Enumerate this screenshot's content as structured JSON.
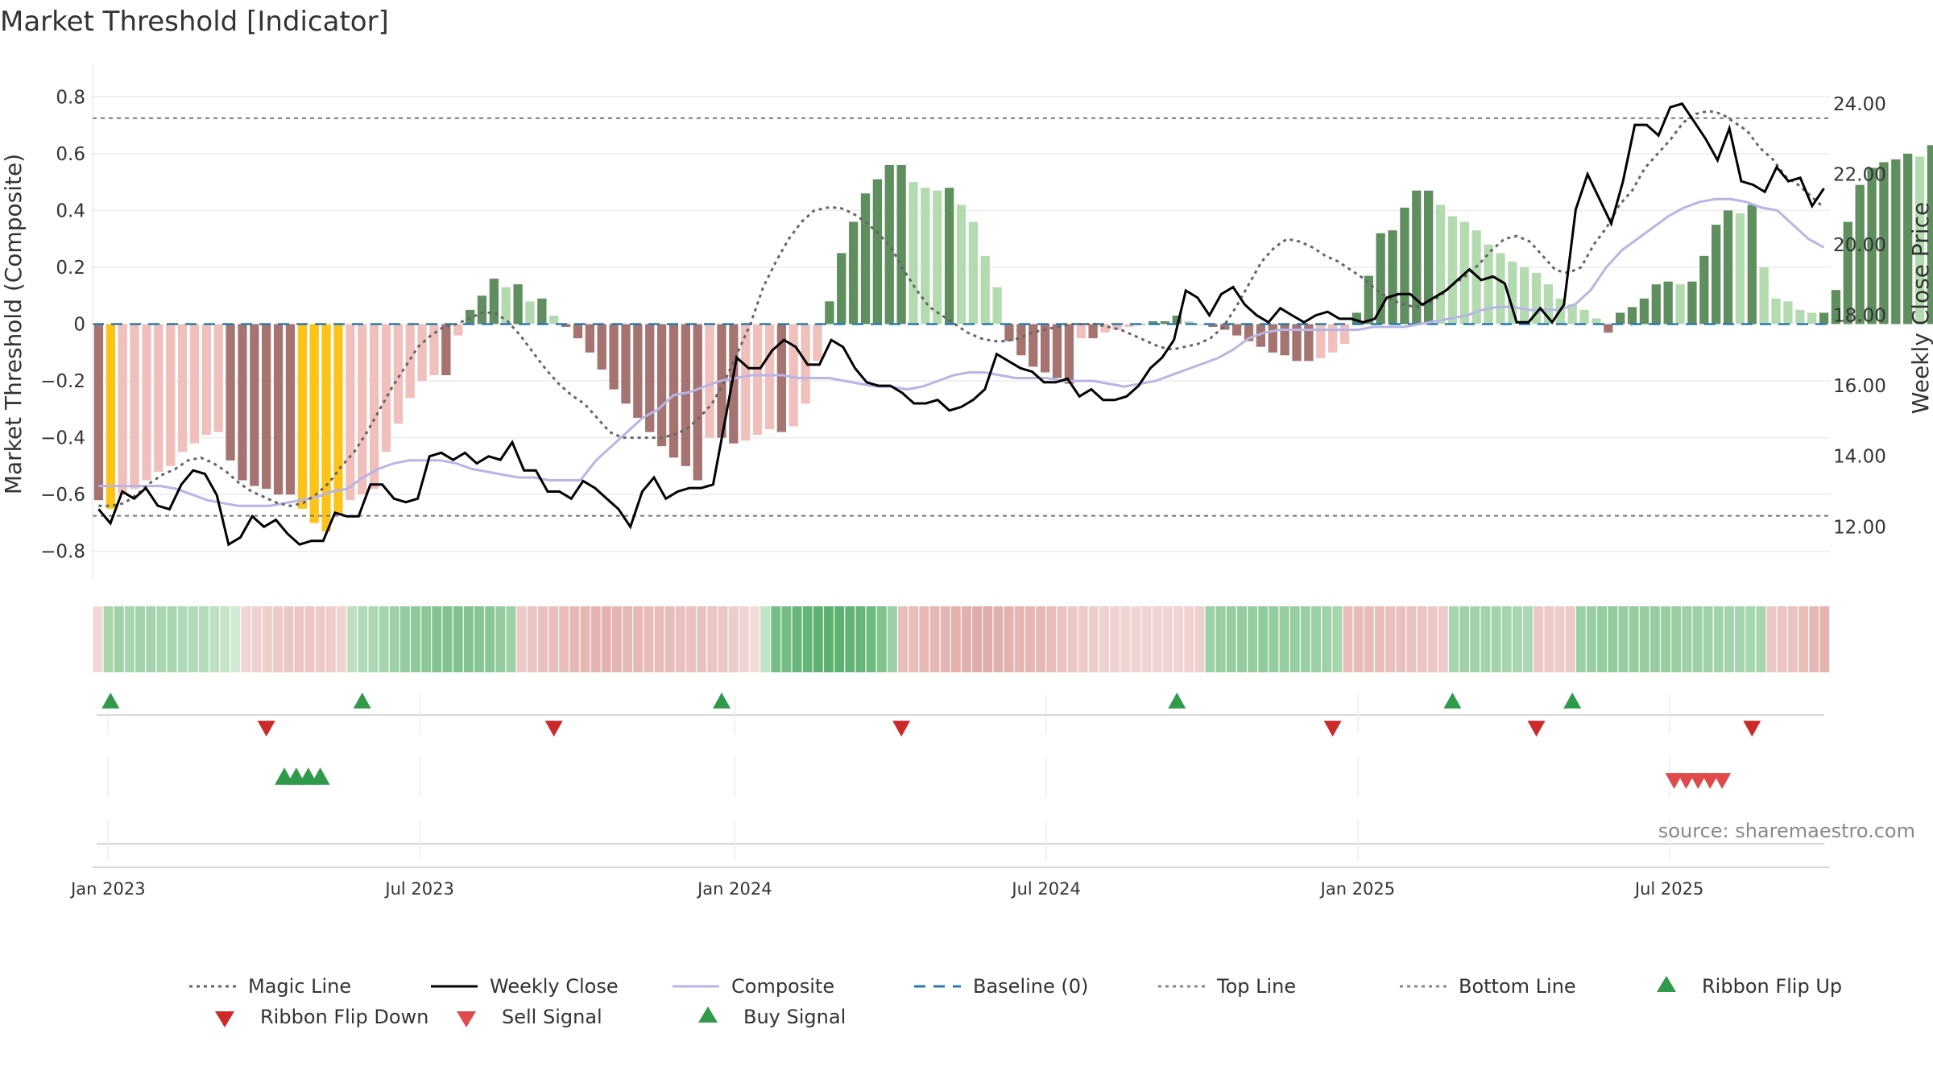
{
  "chart_data": {
    "type": "bar",
    "title": "Market Threshold [Indicator]",
    "ylabel_left": "Market Threshold (Composite)",
    "ylabel_right": "Weekly Close Price",
    "ylim_left": [
      -0.9,
      0.9
    ],
    "ylim_right": [
      10.5,
      25.0
    ],
    "yticks_left": [
      0.8,
      0.6,
      0.4,
      0.2,
      0,
      -0.2,
      -0.4,
      -0.6,
      -0.8
    ],
    "yticks_left_labels": [
      "0.8",
      "0.6",
      "0.4",
      "0.2",
      "0",
      "−0.2",
      "−0.4",
      "−0.6",
      "−0.8"
    ],
    "yticks_right": [
      24,
      22,
      20,
      18,
      16,
      14,
      12
    ],
    "yticks_right_labels": [
      "24.00",
      "22.00",
      "20.00",
      "18.00",
      "16.00",
      "14.00",
      "12.00"
    ],
    "x_axis": {
      "start_date": "2023-01-02",
      "weeks": 145,
      "tick_labels": [
        "Jan 2023",
        "Jul 2023",
        "Jan 2024",
        "Jul 2024",
        "Jan 2025",
        "Jul 2025"
      ],
      "tick_weeks": [
        1.3,
        27.3,
        53.6,
        79.6,
        105.6,
        131.6
      ]
    },
    "top_line": 0.725,
    "bottom_line": -0.675,
    "baseline": 0,
    "series": [
      {
        "name": "Composite",
        "kind": "bars",
        "values": [
          -0.62,
          -0.65,
          -0.6,
          -0.58,
          -0.55,
          -0.52,
          -0.5,
          -0.45,
          -0.42,
          -0.39,
          -0.38,
          -0.48,
          -0.55,
          -0.57,
          -0.58,
          -0.6,
          -0.6,
          -0.65,
          -0.7,
          -0.73,
          -0.67,
          -0.62,
          -0.6,
          -0.58,
          -0.45,
          -0.35,
          -0.26,
          -0.2,
          -0.18,
          -0.18,
          -0.04,
          0.05,
          0.1,
          0.16,
          0.13,
          0.14,
          0.08,
          0.09,
          0.03,
          -0.01,
          -0.05,
          -0.1,
          -0.16,
          -0.23,
          -0.28,
          -0.33,
          -0.38,
          -0.43,
          -0.47,
          -0.5,
          -0.55,
          -0.4,
          -0.4,
          -0.42,
          -0.41,
          -0.39,
          -0.37,
          -0.38,
          -0.36,
          -0.28,
          -0.13,
          0.08,
          0.25,
          0.36,
          0.46,
          0.51,
          0.56,
          0.56,
          0.5,
          0.48,
          0.47,
          0.48,
          0.42,
          0.36,
          0.24,
          0.13,
          -0.06,
          -0.11,
          -0.15,
          -0.17,
          -0.19,
          -0.21,
          -0.05,
          -0.05,
          -0.03,
          -0.02,
          -0.01,
          0,
          0.01,
          0.01,
          0.03,
          0.01,
          0,
          -0.01,
          -0.02,
          -0.04,
          -0.06,
          -0.08,
          -0.1,
          -0.11,
          -0.13,
          -0.13,
          -0.12,
          -0.1,
          -0.07,
          0.04,
          0.17,
          0.32,
          0.33,
          0.41,
          0.47,
          0.47,
          0.42,
          0.38,
          0.36,
          0.33,
          0.28,
          0.25,
          0.22,
          0.2,
          0.18,
          0.14,
          0.09,
          0.07,
          0.05,
          0.02,
          -0.03,
          0.04,
          0.06,
          0.09,
          0.14,
          0.15,
          0.14,
          0.15,
          0.24,
          0.35,
          0.4,
          0.39,
          0.42,
          0.2,
          0.09,
          0.08,
          0.05,
          0.04,
          0.04,
          0.12,
          0.36,
          0.49,
          0.55,
          0.57,
          0.58,
          0.6,
          0.59,
          0.63,
          0.66,
          0.7,
          0.78,
          0.82,
          0.8,
          0.71,
          0.7,
          0.52,
          0.4,
          0.32,
          0.31,
          0.26,
          0.26
        ]
      },
      {
        "name": "Weekly Close",
        "kind": "line",
        "color": "#000000",
        "axis": "right",
        "values": [
          12.5,
          12.1,
          13.0,
          12.8,
          13.1,
          12.6,
          12.5,
          13.2,
          13.6,
          13.5,
          12.9,
          11.5,
          11.7,
          12.3,
          12.0,
          12.2,
          11.8,
          11.5,
          11.6,
          11.6,
          12.4,
          12.3,
          12.3,
          13.2,
          13.2,
          12.8,
          12.7,
          12.8,
          14.0,
          14.1,
          13.9,
          14.1,
          13.8,
          14.0,
          13.9,
          14.4,
          13.6,
          13.6,
          13.0,
          13.0,
          12.8,
          13.3,
          13.1,
          12.8,
          12.5,
          12.0,
          13.0,
          13.4,
          12.8,
          13.0,
          13.1,
          13.1,
          13.2,
          15.0,
          16.8,
          16.5,
          16.5,
          17.0,
          17.3,
          17.1,
          16.6,
          16.6,
          17.3,
          17.1,
          16.5,
          16.1,
          16.0,
          16.0,
          15.8,
          15.5,
          15.5,
          15.6,
          15.3,
          15.4,
          15.6,
          15.9,
          16.9,
          16.7,
          16.5,
          16.4,
          16.1,
          16.1,
          16.2,
          15.7,
          15.9,
          15.6,
          15.6,
          15.7,
          16.0,
          16.5,
          16.8,
          17.3,
          18.7,
          18.5,
          18.0,
          18.6,
          18.8,
          18.3,
          18.0,
          17.8,
          18.2,
          18.0,
          17.8,
          18.0,
          18.1,
          17.9,
          17.9,
          17.8,
          17.9,
          18.5,
          18.6,
          18.6,
          18.3,
          18.5,
          18.7,
          19.0,
          19.3,
          19.0,
          19.1,
          18.9,
          17.8,
          17.8,
          18.2,
          17.8,
          18.3,
          21.0,
          22.0,
          21.3,
          20.6,
          21.8,
          23.4,
          23.4,
          23.1,
          23.9,
          24.0,
          23.5,
          23.0,
          22.4,
          23.3,
          21.8,
          21.7,
          21.5,
          22.2,
          21.8,
          21.9,
          21.1,
          21.6
        ]
      },
      {
        "name": "Composite",
        "kind": "smooth_line",
        "color": "#b8b4e6",
        "values": [
          -0.57,
          -0.57,
          -0.57,
          -0.57,
          -0.57,
          -0.58,
          -0.6,
          -0.62,
          -0.63,
          -0.64,
          -0.64,
          -0.64,
          -0.63,
          -0.62,
          -0.61,
          -0.59,
          -0.58,
          -0.54,
          -0.51,
          -0.49,
          -0.48,
          -0.48,
          -0.48,
          -0.49,
          -0.51,
          -0.52,
          -0.53,
          -0.54,
          -0.54,
          -0.55,
          -0.55,
          -0.55,
          -0.48,
          -0.43,
          -0.38,
          -0.33,
          -0.3,
          -0.25,
          -0.24,
          -0.22,
          -0.2,
          -0.19,
          -0.18,
          -0.18,
          -0.18,
          -0.19,
          -0.19,
          -0.19,
          -0.2,
          -0.21,
          -0.22,
          -0.22,
          -0.23,
          -0.22,
          -0.2,
          -0.18,
          -0.17,
          -0.17,
          -0.18,
          -0.19,
          -0.19,
          -0.19,
          -0.2,
          -0.2,
          -0.2,
          -0.21,
          -0.22,
          -0.21,
          -0.2,
          -0.18,
          -0.16,
          -0.14,
          -0.12,
          -0.09,
          -0.05,
          -0.03,
          -0.02,
          -0.02,
          -0.02,
          -0.02,
          -0.02,
          -0.02,
          -0.01,
          -0.01,
          -0.01,
          0,
          0.01,
          0.02,
          0.03,
          0.05,
          0.06,
          0.06,
          0.05,
          0.05,
          0.05,
          0.07,
          0.12,
          0.2,
          0.26,
          0.3,
          0.34,
          0.38,
          0.41,
          0.43,
          0.44,
          0.44,
          0.43,
          0.41,
          0.4,
          0.35,
          0.3,
          0.27
        ]
      },
      {
        "name": "Magic Line",
        "kind": "dotted_line",
        "color": "#666666",
        "values": [
          -0.64,
          -0.64,
          -0.63,
          -0.6,
          -0.56,
          -0.53,
          -0.51,
          -0.48,
          -0.47,
          -0.49,
          -0.52,
          -0.56,
          -0.59,
          -0.61,
          -0.63,
          -0.64,
          -0.63,
          -0.6,
          -0.56,
          -0.5,
          -0.45,
          -0.38,
          -0.3,
          -0.22,
          -0.15,
          -0.08,
          -0.04,
          -0.01,
          0.0,
          0.02,
          0.04,
          0.04,
          0.01,
          -0.04,
          -0.1,
          -0.16,
          -0.21,
          -0.25,
          -0.28,
          -0.33,
          -0.38,
          -0.4,
          -0.4,
          -0.4,
          -0.4,
          -0.39,
          -0.37,
          -0.33,
          -0.28,
          -0.2,
          -0.1,
          0.0,
          0.13,
          0.22,
          0.3,
          0.36,
          0.4,
          0.41,
          0.41,
          0.39,
          0.36,
          0.32,
          0.27,
          0.19,
          0.12,
          0.06,
          0.03,
          0.0,
          -0.03,
          -0.05,
          -0.06,
          -0.06,
          -0.05,
          -0.03,
          -0.02,
          -0.01,
          0.0,
          0.0,
          0.0,
          -0.01,
          -0.02,
          -0.04,
          -0.06,
          -0.08,
          -0.09,
          -0.08,
          -0.07,
          -0.05,
          -0.01,
          0.06,
          0.14,
          0.22,
          0.27,
          0.3,
          0.29,
          0.27,
          0.24,
          0.22,
          0.19,
          0.16,
          0.12,
          0.09,
          0.07,
          0.06,
          0.07,
          0.1,
          0.14,
          0.17,
          0.21,
          0.26,
          0.3,
          0.31,
          0.29,
          0.24,
          0.19,
          0.18,
          0.2,
          0.28,
          0.34,
          0.42,
          0.47,
          0.55,
          0.6,
          0.65,
          0.71,
          0.74,
          0.75,
          0.74,
          0.71,
          0.68,
          0.62,
          0.58,
          0.52,
          0.49,
          0.45,
          0.41
        ]
      }
    ],
    "ribbon": {
      "values": [
        -0.08,
        0.35,
        0.38,
        0.34,
        0.37,
        0.36,
        0.33,
        0.34,
        0.3,
        0.29,
        0.28,
        0.22,
        0.18,
        0.12,
        -0.12,
        -0.15,
        -0.18,
        -0.2,
        -0.22,
        -0.24,
        -0.22,
        -0.2,
        -0.18,
        -0.12,
        0.22,
        0.28,
        0.32,
        0.36,
        0.4,
        0.45,
        0.48,
        0.5,
        0.53,
        0.55,
        0.55,
        0.54,
        0.52,
        0.5,
        0.45,
        0.4,
        -0.2,
        -0.25,
        -0.28,
        -0.3,
        -0.32,
        -0.35,
        -0.36,
        -0.38,
        -0.4,
        -0.38,
        -0.35,
        -0.34,
        -0.32,
        -0.32,
        -0.3,
        -0.28,
        -0.27,
        -0.26,
        -0.24,
        -0.22,
        -0.18,
        -0.12,
        -0.05,
        0.2,
        0.6,
        0.62,
        0.68,
        0.7,
        0.74,
        0.75,
        0.75,
        0.72,
        0.7,
        0.65,
        0.55,
        0.4,
        -0.3,
        -0.32,
        -0.34,
        -0.36,
        -0.38,
        -0.4,
        -0.42,
        -0.44,
        -0.44,
        -0.42,
        -0.4,
        -0.38,
        -0.36,
        -0.34,
        -0.3,
        -0.26,
        -0.22,
        -0.2,
        -0.18,
        -0.15,
        -0.14,
        -0.12,
        -0.12,
        -0.12,
        -0.12,
        -0.12,
        -0.12,
        -0.13,
        -0.15,
        0.4,
        0.42,
        0.44,
        0.45,
        0.45,
        0.46,
        0.45,
        0.44,
        0.43,
        0.42,
        0.4,
        0.38,
        0.35,
        -0.3,
        -0.32,
        -0.32,
        -0.3,
        -0.28,
        -0.27,
        -0.26,
        -0.24,
        -0.22,
        -0.2,
        0.35,
        0.38,
        0.38,
        0.37,
        0.36,
        0.35,
        0.34,
        0.32,
        -0.22,
        -0.2,
        -0.18,
        -0.2,
        0.4,
        0.42,
        0.45,
        0.46,
        0.45,
        0.44,
        0.44,
        0.43,
        0.42,
        0.42,
        0.4,
        0.4,
        0.38,
        0.38,
        0.36,
        0.36,
        0.35,
        0.34,
        -0.22,
        -0.24,
        -0.26,
        -0.3,
        -0.35,
        -0.38
      ]
    },
    "signals": {
      "ribbon_flip_up_weeks": [
        1.5,
        22.5,
        52.5,
        90.5,
        113.5,
        123.5
      ],
      "ribbon_flip_down_weeks": [
        14.5,
        38.5,
        67.5,
        103.5,
        120.5,
        138.5
      ],
      "buy_signal_weeks": [
        16,
        17,
        18,
        19
      ],
      "sell_signal_weeks": [
        132,
        133,
        134,
        135,
        136
      ]
    },
    "legend": {
      "placement": "bottom",
      "items": [
        {
          "label": "Magic Line",
          "kind": "dotted",
          "color": "#666666"
        },
        {
          "label": "Weekly Close",
          "kind": "solid",
          "color": "#000000"
        },
        {
          "label": "Composite",
          "kind": "solid",
          "color": "#b8b4e6"
        },
        {
          "label": "Baseline (0)",
          "kind": "dashed",
          "color": "#2a7ab0"
        },
        {
          "label": "Top Line",
          "kind": "dotted",
          "color": "#888888"
        },
        {
          "label": "Bottom Line",
          "kind": "dotted",
          "color": "#888888"
        },
        {
          "label": "Ribbon Flip Up",
          "kind": "triangle-up",
          "color": "#2e9a4a"
        },
        {
          "label": "Ribbon Flip Down",
          "kind": "triangle-down",
          "color": "#cc2a2a"
        },
        {
          "label": "Sell Signal",
          "kind": "triangle-down",
          "color": "#e04a4a"
        },
        {
          "label": "Buy Signal",
          "kind": "triangle-up",
          "color": "#2e9a4a"
        }
      ]
    },
    "colors": {
      "bull_strong": "#5f8f5e",
      "bull_weak": "#b4dbb0",
      "bear_strong": "#a57370",
      "bear_weak": "#f0c0bc",
      "extreme": "#fcc419",
      "grid": "#ececec"
    },
    "grid": true,
    "source": "source: sharemaestro.com"
  }
}
